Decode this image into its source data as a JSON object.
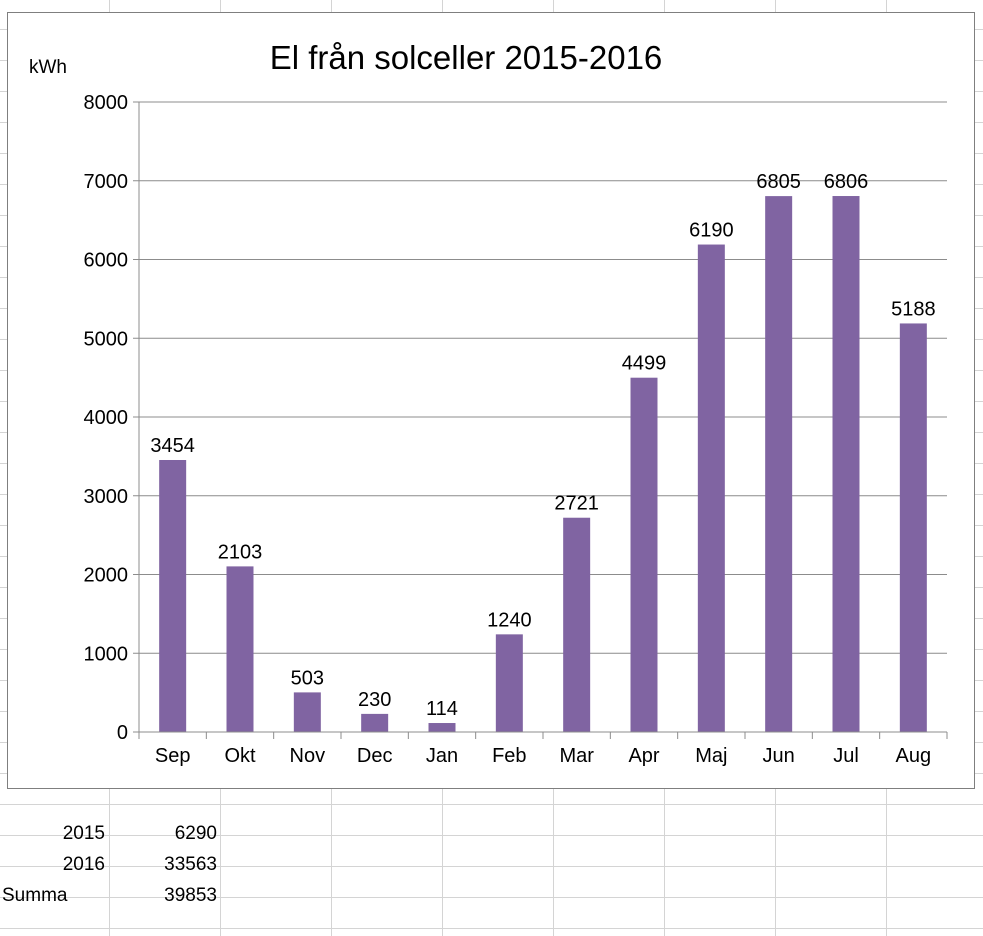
{
  "chart_data": {
    "type": "bar",
    "title": "El från solceller 2015-2016",
    "ylabel": "kWh",
    "xlabel": "",
    "categories": [
      "Sep",
      "Okt",
      "Nov",
      "Dec",
      "Jan",
      "Feb",
      "Mar",
      "Apr",
      "Maj",
      "Jun",
      "Jul",
      "Aug"
    ],
    "values": [
      3454,
      2103,
      503,
      230,
      114,
      1240,
      2721,
      4499,
      6190,
      6805,
      6806,
      5188
    ],
    "ylim": [
      0,
      8000
    ],
    "yticks": [
      0,
      1000,
      2000,
      3000,
      4000,
      5000,
      6000,
      7000,
      8000
    ],
    "grid": true,
    "data_labels": true,
    "bar_color": "#8064a2"
  },
  "sheet": {
    "rows": [
      {
        "label": "2015",
        "value": "6290"
      },
      {
        "label": "2016",
        "value": "33563"
      },
      {
        "label": "Summa",
        "value": "39853"
      }
    ]
  }
}
